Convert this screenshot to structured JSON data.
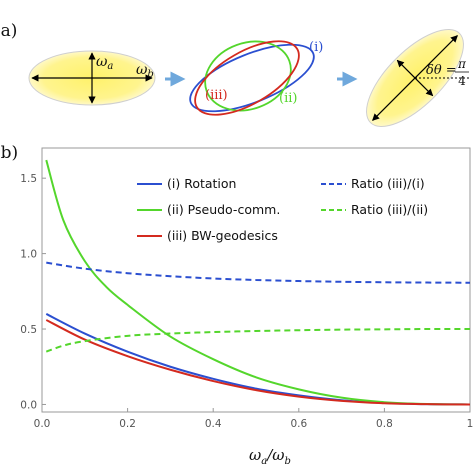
{
  "panel_a": {
    "label": "(a)",
    "omega_a": "ω",
    "omega_a_sub": "a",
    "omega_b": "ω",
    "omega_b_sub": "b",
    "curve_i": "(i)",
    "curve_ii": "(ii)",
    "curve_iii": "(iii)",
    "delta_theta": "δθ =",
    "pi_num": "π",
    "pi_den": "4",
    "colors": {
      "i": "#2b4fd0",
      "ii": "#54d62c",
      "iii": "#d42a1f",
      "arrow": "#6fa8dc",
      "fill": "#fff04a"
    }
  },
  "panel_b": {
    "label": "(b)"
  },
  "chart_data": {
    "type": "line",
    "xlabel": "ω",
    "xlabel_sub1": "a",
    "xlabel_sep": "/ω",
    "xlabel_sub2": "b",
    "ylabel": "",
    "xlim": [
      0,
      1
    ],
    "ylim": [
      -0.05,
      1.7
    ],
    "xticks": [
      "0.0",
      "0.2",
      "0.4",
      "0.6",
      "0.8",
      "1"
    ],
    "yticks": [
      "0.0",
      "0.5",
      "1.0",
      "1.5"
    ],
    "legend_placement": "top-right",
    "series": [
      {
        "name": "(i) Rotation",
        "color": "#2b4fd0",
        "dash": false,
        "x": [
          0.01,
          0.1,
          0.2,
          0.3,
          0.4,
          0.5,
          0.6,
          0.7,
          0.8,
          0.9,
          1.0
        ],
        "y": [
          0.6,
          0.47,
          0.35,
          0.25,
          0.17,
          0.105,
          0.06,
          0.028,
          0.01,
          0.002,
          0.0
        ]
      },
      {
        "name": "(ii) Pseudo-comm.",
        "color": "#54d62c",
        "dash": false,
        "x": [
          0.01,
          0.05,
          0.1,
          0.15,
          0.2,
          0.3,
          0.4,
          0.5,
          0.6,
          0.7,
          0.8,
          0.9,
          1.0
        ],
        "y": [
          1.62,
          1.22,
          0.95,
          0.78,
          0.66,
          0.45,
          0.3,
          0.18,
          0.1,
          0.045,
          0.015,
          0.003,
          0.0
        ]
      },
      {
        "name": "(iii) BW-geodesics",
        "color": "#d42a1f",
        "dash": false,
        "x": [
          0.01,
          0.1,
          0.2,
          0.3,
          0.4,
          0.5,
          0.6,
          0.7,
          0.8,
          0.9,
          1.0
        ],
        "y": [
          0.56,
          0.43,
          0.32,
          0.23,
          0.155,
          0.095,
          0.052,
          0.024,
          0.008,
          0.002,
          0.0
        ]
      },
      {
        "name": "Ratio (iii)/(i)",
        "color": "#2b4fd0",
        "dash": true,
        "x": [
          0.01,
          0.1,
          0.2,
          0.3,
          0.4,
          0.5,
          0.6,
          0.7,
          0.8,
          0.9,
          1.0
        ],
        "y": [
          0.94,
          0.9,
          0.87,
          0.85,
          0.835,
          0.825,
          0.818,
          0.813,
          0.81,
          0.808,
          0.807
        ]
      },
      {
        "name": "Ratio (iii)/(ii)",
        "color": "#54d62c",
        "dash": true,
        "x": [
          0.01,
          0.05,
          0.1,
          0.2,
          0.3,
          0.4,
          0.5,
          0.6,
          0.7,
          0.8,
          0.9,
          1.0
        ],
        "y": [
          0.35,
          0.39,
          0.42,
          0.455,
          0.47,
          0.48,
          0.487,
          0.492,
          0.496,
          0.498,
          0.5,
          0.5
        ]
      }
    ]
  }
}
